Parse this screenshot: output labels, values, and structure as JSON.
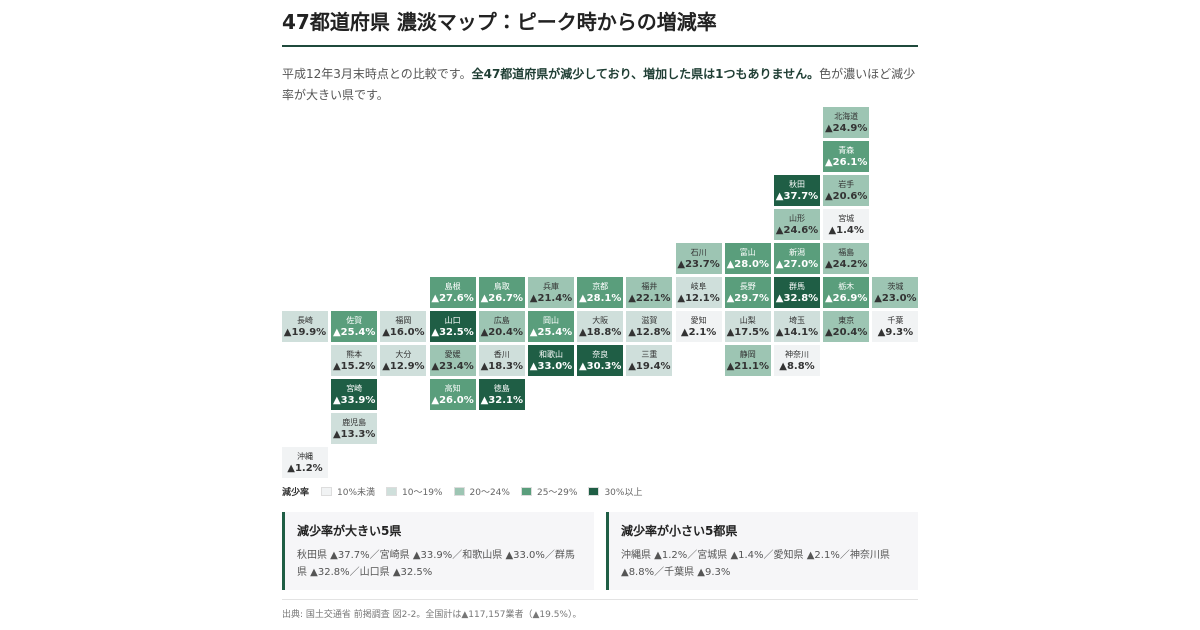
{
  "header": {
    "title": "47都道府県 濃淡マップ：ピーク時からの増減率"
  },
  "intro": {
    "before": "平成12年3月末時点との比較です。",
    "bold": "全47都道府県が減少しており、増加した県は1つもありません。",
    "after": "色が濃いほど減少率が大きい県です。"
  },
  "tiles": [
    {
      "name": "北海道",
      "label": "▲24.9%",
      "color": "#9dc5b3"
    },
    {
      "name": "青森",
      "label": "▲26.1%",
      "color": "#5a9e7c"
    },
    {
      "name": "秋田",
      "label": "▲37.7%",
      "color": "#1f5e45"
    },
    {
      "name": "岩手",
      "label": "▲20.6%",
      "color": "#9dc5b3"
    },
    {
      "name": "山形",
      "label": "▲24.6%",
      "color": "#9dc5b3"
    },
    {
      "name": "宮城",
      "label": "▲1.4%",
      "color": "#f1f3f4"
    },
    {
      "name": "石川",
      "label": "▲23.7%",
      "color": "#9dc5b3"
    },
    {
      "name": "富山",
      "label": "▲28.0%",
      "color": "#5a9e7c"
    },
    {
      "name": "新潟",
      "label": "▲27.0%",
      "color": "#5a9e7c"
    },
    {
      "name": "福島",
      "label": "▲24.2%",
      "color": "#9dc5b3"
    },
    {
      "name": "島根",
      "label": "▲27.6%",
      "color": "#5a9e7c"
    },
    {
      "name": "鳥取",
      "label": "▲26.7%",
      "color": "#5a9e7c"
    },
    {
      "name": "兵庫",
      "label": "▲21.4%",
      "color": "#9dc5b3"
    },
    {
      "name": "京都",
      "label": "▲28.1%",
      "color": "#5a9e7c"
    },
    {
      "name": "福井",
      "label": "▲22.1%",
      "color": "#9dc5b3"
    },
    {
      "name": "岐阜",
      "label": "▲12.1%",
      "color": "#cfdfdb"
    },
    {
      "name": "長野",
      "label": "▲29.7%",
      "color": "#5a9e7c"
    },
    {
      "name": "群馬",
      "label": "▲32.8%",
      "color": "#1f5e45"
    },
    {
      "name": "栃木",
      "label": "▲26.9%",
      "color": "#5a9e7c"
    },
    {
      "name": "茨城",
      "label": "▲23.0%",
      "color": "#9dc5b3"
    },
    {
      "name": "長崎",
      "label": "▲19.9%",
      "color": "#cfdfdb"
    },
    {
      "name": "佐賀",
      "label": "▲25.4%",
      "color": "#5a9e7c"
    },
    {
      "name": "福岡",
      "label": "▲16.0%",
      "color": "#cfdfdb"
    },
    {
      "name": "山口",
      "label": "▲32.5%",
      "color": "#1f5e45"
    },
    {
      "name": "広島",
      "label": "▲20.4%",
      "color": "#9dc5b3"
    },
    {
      "name": "岡山",
      "label": "▲25.4%",
      "color": "#5a9e7c"
    },
    {
      "name": "大阪",
      "label": "▲18.8%",
      "color": "#cfdfdb"
    },
    {
      "name": "滋賀",
      "label": "▲12.8%",
      "color": "#cfdfdb"
    },
    {
      "name": "愛知",
      "label": "▲2.1%",
      "color": "#f1f3f4"
    },
    {
      "name": "山梨",
      "label": "▲17.5%",
      "color": "#cfdfdb"
    },
    {
      "name": "埼玉",
      "label": "▲14.1%",
      "color": "#cfdfdb"
    },
    {
      "name": "東京",
      "label": "▲20.4%",
      "color": "#9dc5b3"
    },
    {
      "name": "千葉",
      "label": "▲9.3%",
      "color": "#f1f3f4"
    },
    {
      "name": "熊本",
      "label": "▲15.2%",
      "color": "#cfdfdb"
    },
    {
      "name": "大分",
      "label": "▲12.9%",
      "color": "#cfdfdb"
    },
    {
      "name": "愛媛",
      "label": "▲23.4%",
      "color": "#9dc5b3"
    },
    {
      "name": "香川",
      "label": "▲18.3%",
      "color": "#cfdfdb"
    },
    {
      "name": "和歌山",
      "label": "▲33.0%",
      "color": "#1f5e45"
    },
    {
      "name": "奈良",
      "label": "▲30.3%",
      "color": "#1f5e45"
    },
    {
      "name": "三重",
      "label": "▲19.4%",
      "color": "#cfdfdb"
    },
    {
      "name": "静岡",
      "label": "▲21.1%",
      "color": "#9dc5b3"
    },
    {
      "name": "神奈川",
      "label": "▲8.8%",
      "color": "#f1f3f4"
    },
    {
      "name": "宮崎",
      "label": "▲33.9%",
      "color": "#1f5e45"
    },
    {
      "name": "高知",
      "label": "▲26.0%",
      "color": "#5a9e7c"
    },
    {
      "name": "徳島",
      "label": "▲32.1%",
      "color": "#1f5e45"
    },
    {
      "name": "鹿児島",
      "label": "▲13.3%",
      "color": "#cfdfdb"
    },
    {
      "name": "沖縄",
      "label": "▲1.2%",
      "color": "#f1f3f4"
    }
  ],
  "legend": {
    "title": "減少率",
    "items": [
      {
        "label": "10%未満",
        "color": "#f1f3f4"
      },
      {
        "label": "10〜19%",
        "color": "#cfdfdb"
      },
      {
        "label": "20〜24%",
        "color": "#9dc5b3"
      },
      {
        "label": "25〜29%",
        "color": "#5a9e7c"
      },
      {
        "label": "30%以上",
        "color": "#1f5e45"
      }
    ]
  },
  "boxes": [
    {
      "title": "減少率が大きい5県",
      "text": "秋田県 ▲37.7%／宮崎県 ▲33.9%／和歌山県 ▲33.0%／群馬県 ▲32.8%／山口県 ▲32.5%"
    },
    {
      "title": "減少率が小さい5都県",
      "text": "沖縄県 ▲1.2%／宮城県 ▲1.4%／愛知県 ▲2.1%／神奈川県 ▲8.8%／千葉県 ▲9.3%"
    }
  ],
  "footer": {
    "source": "出典: 国土交通省 前掲調査 図2-2。全国計は▲117,157業者（▲19.5%）。"
  }
}
